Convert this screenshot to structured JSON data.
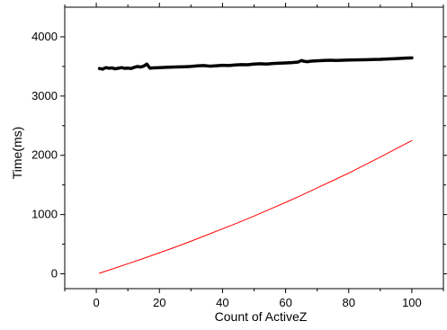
{
  "chart_data": {
    "type": "line",
    "title": "",
    "xlabel": "Count of ActiveZ",
    "ylabel": "Time(ms)",
    "xlim": [
      -10,
      110
    ],
    "ylim": [
      -250,
      4500
    ],
    "xticks": [
      0,
      20,
      40,
      60,
      80,
      100
    ],
    "yticks": [
      0,
      1000,
      2000,
      3000,
      4000
    ],
    "xtick_labels": [
      "0",
      "20",
      "40",
      "60",
      "80",
      "100"
    ],
    "ytick_labels": [
      "0",
      "1000",
      "2000",
      "3000",
      "4000"
    ],
    "grid": false,
    "legend": "none",
    "series": [
      {
        "color": "#000000",
        "line_width": "thick",
        "x": [
          1,
          2,
          3,
          4,
          5,
          6,
          7,
          8,
          9,
          10,
          11,
          12,
          13,
          14,
          15,
          16,
          17,
          18,
          20,
          22,
          25,
          28,
          30,
          32,
          34,
          36,
          38,
          40,
          42,
          44,
          46,
          48,
          50,
          52,
          54,
          56,
          58,
          60,
          62,
          64,
          65,
          66,
          67,
          68,
          70,
          72,
          74,
          76,
          78,
          80,
          82,
          84,
          86,
          88,
          90,
          92,
          94,
          96,
          98,
          100
        ],
        "y": [
          3465,
          3455,
          3480,
          3470,
          3475,
          3460,
          3470,
          3480,
          3468,
          3472,
          3465,
          3485,
          3500,
          3490,
          3505,
          3540,
          3470,
          3475,
          3480,
          3485,
          3490,
          3495,
          3500,
          3510,
          3515,
          3505,
          3512,
          3520,
          3515,
          3525,
          3530,
          3528,
          3540,
          3545,
          3540,
          3550,
          3555,
          3560,
          3565,
          3575,
          3600,
          3585,
          3580,
          3590,
          3595,
          3600,
          3605,
          3600,
          3605,
          3608,
          3610,
          3612,
          3615,
          3618,
          3620,
          3625,
          3630,
          3635,
          3640,
          3645
        ]
      },
      {
        "color": "#ff0000",
        "line_width": "thin",
        "x": [
          1,
          5,
          10,
          15,
          20,
          25,
          30,
          35,
          40,
          45,
          50,
          55,
          60,
          65,
          70,
          75,
          80,
          85,
          90,
          95,
          100
        ],
        "y": [
          10,
          80,
          170,
          260,
          355,
          450,
          550,
          655,
          760,
          865,
          975,
          1090,
          1205,
          1325,
          1450,
          1575,
          1700,
          1835,
          1970,
          2110,
          2250
        ]
      }
    ]
  }
}
